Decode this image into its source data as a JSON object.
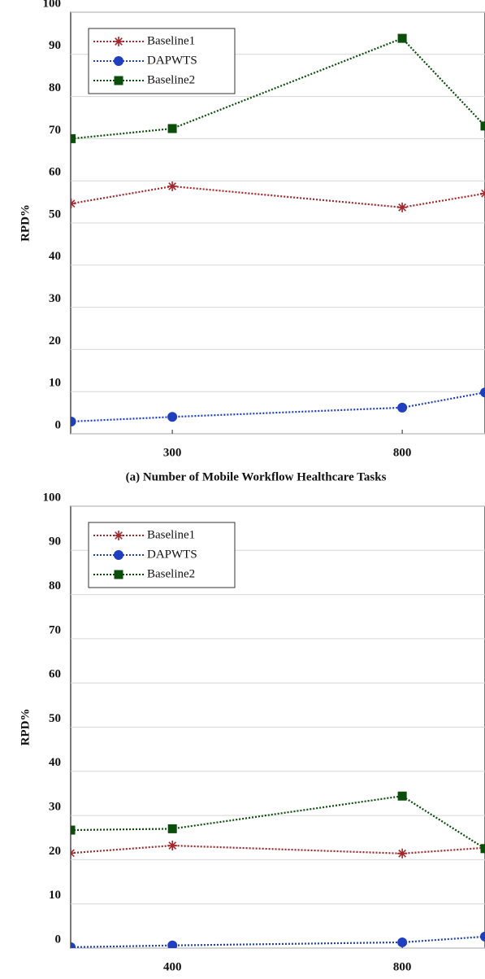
{
  "chart_data": [
    {
      "type": "line",
      "ylabel": "RPD%",
      "xlabel": "(a) Number of Mobile Workflow Healthcare Tasks",
      "x": [
        80,
        300,
        800,
        980
      ],
      "xlim": [
        79,
        980
      ],
      "xticks": [
        300,
        800
      ],
      "ylim": [
        0,
        100
      ],
      "yticks": [
        0,
        10,
        20,
        30,
        40,
        50,
        60,
        70,
        80,
        90,
        100
      ],
      "grid": true,
      "legend": "upper left",
      "series": [
        {
          "name": "Baseline1",
          "color": "#a3262a",
          "marker": "star",
          "values": [
            54.6,
            58.7,
            53.7,
            57
          ]
        },
        {
          "name": "DAPWTS",
          "color": "#1f3fbf",
          "marker": "circle",
          "values": [
            2.9,
            4,
            6.2,
            9.8
          ]
        },
        {
          "name": "Baseline2",
          "color": "#0b4d0b",
          "marker": "square",
          "values": [
            70,
            72.4,
            93.8,
            73
          ]
        }
      ]
    },
    {
      "type": "line",
      "ylabel": "RPD%",
      "xlabel": "(b) Number of Mobile Workflow Healthcare Tasks",
      "x": [
        223,
        400,
        800,
        944
      ],
      "xlim": [
        223,
        944
      ],
      "xticks": [
        400,
        800
      ],
      "ylim": [
        0,
        100
      ],
      "yticks": [
        0,
        10,
        20,
        30,
        40,
        50,
        60,
        70,
        80,
        90,
        100
      ],
      "grid": true,
      "legend": "upper left",
      "series": [
        {
          "name": "Baseline1",
          "color": "#a3262a",
          "marker": "star",
          "values": [
            21.5,
            23.2,
            21.4,
            22.7
          ]
        },
        {
          "name": "DAPWTS",
          "color": "#1f3fbf",
          "marker": "circle",
          "values": [
            0.2,
            0.6,
            1.3,
            2.6
          ]
        },
        {
          "name": "Baseline2",
          "color": "#0b4d0b",
          "marker": "square",
          "values": [
            26.7,
            27,
            34.4,
            22.5
          ]
        }
      ]
    }
  ]
}
